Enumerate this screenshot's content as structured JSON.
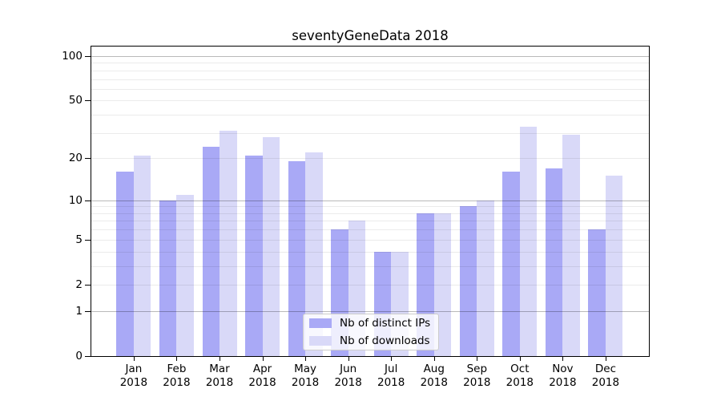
{
  "chart_data": {
    "type": "bar",
    "title": "seventyGeneData 2018",
    "categories": [
      "Jan 2018",
      "Feb 2018",
      "Mar 2018",
      "Apr 2018",
      "May 2018",
      "Jun 2018",
      "Jul 2018",
      "Aug 2018",
      "Sep 2018",
      "Oct 2018",
      "Nov 2018",
      "Dec 2018"
    ],
    "x_axis": {
      "months": [
        "Jan",
        "Feb",
        "Mar",
        "Apr",
        "May",
        "Jun",
        "Jul",
        "Aug",
        "Sep",
        "Oct",
        "Nov",
        "Dec"
      ],
      "year": "2018"
    },
    "y_axis": {
      "scale": "log10(1+x)",
      "ticks": [
        0,
        1,
        2,
        5,
        10,
        20,
        50,
        100
      ],
      "minor_gridlines": [
        2,
        3,
        4,
        5,
        6,
        7,
        8,
        9,
        20,
        30,
        40,
        50,
        60,
        70,
        80,
        90
      ],
      "major_gridlines": [
        1,
        10,
        100
      ],
      "range_min": 0,
      "range_max": 116
    },
    "series": [
      {
        "name": "Nb of distinct IPs",
        "color": "#a9a9f6",
        "values": [
          16,
          10,
          24,
          21,
          19,
          6,
          4,
          8,
          9,
          16,
          17,
          6
        ]
      },
      {
        "name": "Nb of downloads",
        "color": "#d9d9f8",
        "values": [
          21,
          11,
          31,
          28,
          22,
          7,
          4,
          8,
          10,
          33,
          29,
          15
        ]
      }
    ],
    "legend": {
      "location": "inside-bottom-center",
      "entries": [
        "Nb of distinct IPs",
        "Nb of downloads"
      ]
    }
  }
}
